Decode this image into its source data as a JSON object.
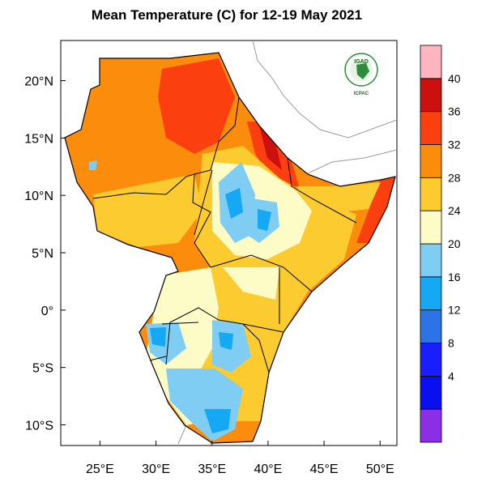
{
  "title": "Mean Temperature (C) for 12-19 May 2021",
  "logo": {
    "top_text": "IGAD",
    "bottom_text": "ICPAC"
  },
  "x_ticks": [
    {
      "lon": 25,
      "label": "25°E"
    },
    {
      "lon": 30,
      "label": "30°E"
    },
    {
      "lon": 35,
      "label": "35°E"
    },
    {
      "lon": 40,
      "label": "40°E"
    },
    {
      "lon": 45,
      "label": "45°E"
    },
    {
      "lon": 50,
      "label": "50°E"
    }
  ],
  "y_ticks": [
    {
      "lat": 20,
      "label": "20°N"
    },
    {
      "lat": 15,
      "label": "15°N"
    },
    {
      "lat": 10,
      "label": "10°N"
    },
    {
      "lat": 5,
      "label": "5°N"
    },
    {
      "lat": 0,
      "label": "0°"
    },
    {
      "lat": -5,
      "label": "5°S"
    },
    {
      "lat": -10,
      "label": "10°S"
    }
  ],
  "map_extent": {
    "lon_min": 21.5,
    "lon_max": 51.5,
    "lat_min": -11.8,
    "lat_max": 23.5
  },
  "colorbar": {
    "bins": [
      {
        "color": "#8c2ee8"
      },
      {
        "color": "#0a0ff0",
        "upper_label": "4"
      },
      {
        "color": "#1a1eff",
        "upper_label": "8"
      },
      {
        "color": "#2b73e6",
        "upper_label": "12"
      },
      {
        "color": "#14a8f5",
        "upper_label": "16"
      },
      {
        "color": "#80cdf4",
        "upper_label": "20"
      },
      {
        "color": "#fefcc6",
        "upper_label": "24"
      },
      {
        "color": "#fccb2f",
        "upper_label": "28"
      },
      {
        "color": "#fc8c0c",
        "upper_label": "32"
      },
      {
        "color": "#fb3f0e",
        "upper_label": "36"
      },
      {
        "color": "#cc0f0f",
        "upper_label": "40"
      },
      {
        "color": "#feb5c0"
      }
    ]
  }
}
